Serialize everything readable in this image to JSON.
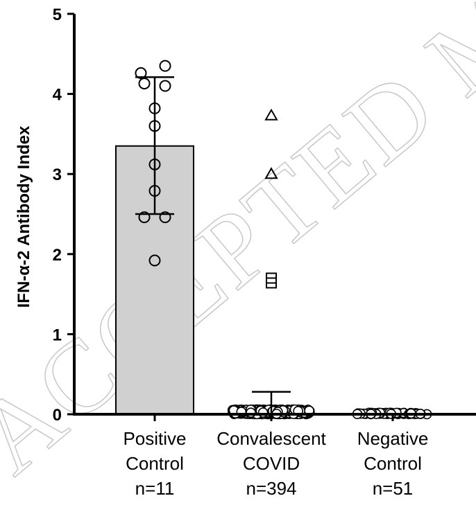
{
  "chart_data": {
    "type": "bar",
    "ylabel": "IFN-α-2 Antibody Index",
    "ylim": [
      0,
      5
    ],
    "yticks": [
      "0",
      "1",
      "2",
      "3",
      "4",
      "5"
    ],
    "grid": false,
    "categories": [
      {
        "lines": [
          "Positive",
          "Control",
          "n=11"
        ],
        "n": 11
      },
      {
        "lines": [
          "Convalescent",
          "COVID",
          "n=394"
        ],
        "n": 394
      },
      {
        "lines": [
          "Negative",
          "Control",
          "n=51"
        ],
        "n": 51
      }
    ],
    "bars": [
      {
        "category": "Positive Control",
        "mean": 3.35,
        "sd_lower": 2.5,
        "sd_upper": 4.21,
        "color": "#d0d0d0"
      },
      {
        "category": "Convalescent COVID",
        "mean": 0.03,
        "sd_lower": 0.0,
        "sd_upper": 0.28,
        "color": "#ffffff"
      },
      {
        "category": "Negative Control",
        "mean": 0.01,
        "sd_lower": 0.0,
        "sd_upper": 0.01,
        "color": "#ffffff"
      }
    ],
    "points": {
      "Positive Control": [
        {
          "x": -0.2,
          "y": 4.26,
          "shape": "circle"
        },
        {
          "x": 0.15,
          "y": 4.35,
          "shape": "circle"
        },
        {
          "x": -0.15,
          "y": 4.13,
          "shape": "circle"
        },
        {
          "x": 0.15,
          "y": 4.1,
          "shape": "circle"
        },
        {
          "x": 0.0,
          "y": 3.82,
          "shape": "circle"
        },
        {
          "x": 0.0,
          "y": 3.6,
          "shape": "circle"
        },
        {
          "x": 0.0,
          "y": 3.12,
          "shape": "circle"
        },
        {
          "x": 0.0,
          "y": 2.79,
          "shape": "circle"
        },
        {
          "x": -0.15,
          "y": 2.46,
          "shape": "circle"
        },
        {
          "x": 0.15,
          "y": 2.46,
          "shape": "circle"
        },
        {
          "x": 0.0,
          "y": 1.92,
          "shape": "circle"
        }
      ],
      "Convalescent COVID": [
        {
          "x": 0.0,
          "y": 3.73,
          "shape": "triangle"
        },
        {
          "x": 0.0,
          "y": 3.0,
          "shape": "triangle"
        },
        {
          "x": 0.0,
          "y": 1.7,
          "shape": "square"
        },
        {
          "x": 0.0,
          "y": 1.64,
          "shape": "square"
        }
      ],
      "Negative Control": []
    },
    "clusters": {
      "Convalescent COVID": {
        "count": 390,
        "y": 0.03,
        "y_spread": 0.06,
        "shape": "circle"
      },
      "Negative Control": {
        "count": 51,
        "y": 0.01,
        "y_spread": 0.02,
        "shape": "circle"
      }
    },
    "watermark": "ACCEPTED MANUSCRIPT"
  }
}
